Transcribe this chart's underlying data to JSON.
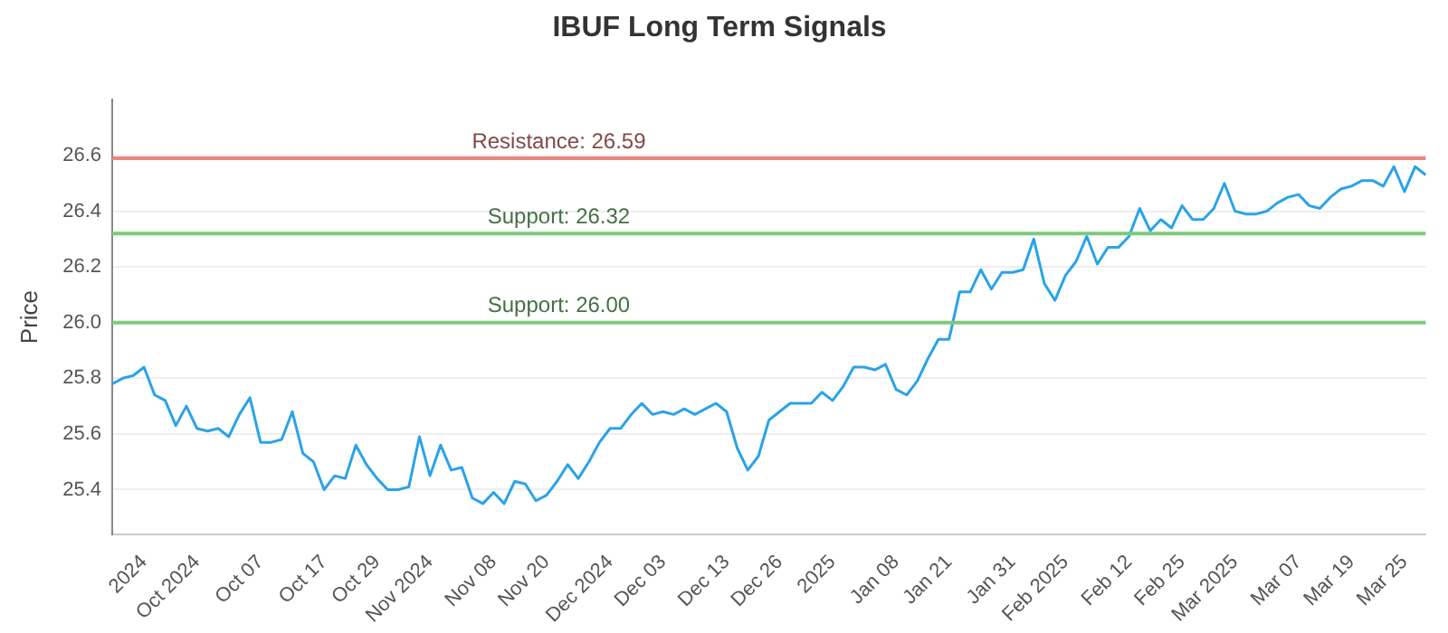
{
  "chart_data": {
    "type": "line",
    "title": "IBUF Long Term Signals",
    "ylabel": "Price",
    "categories": [
      null,
      null,
      null,
      "2024",
      null,
      null,
      null,
      null,
      "Oct 2024",
      null,
      null,
      null,
      null,
      null,
      "Oct 07",
      null,
      null,
      null,
      null,
      null,
      "Oct 17",
      null,
      null,
      null,
      null,
      "Oct 29",
      null,
      null,
      null,
      null,
      "Nov 2024",
      null,
      null,
      null,
      null,
      null,
      "Nov 08",
      null,
      null,
      null,
      null,
      "Nov 20",
      null,
      null,
      null,
      null,
      null,
      "Dec 2024",
      null,
      null,
      null,
      null,
      "Dec 03",
      null,
      null,
      null,
      null,
      null,
      "Dec 13",
      null,
      null,
      null,
      null,
      "Dec 26",
      null,
      null,
      null,
      null,
      "2025",
      null,
      null,
      null,
      null,
      null,
      "Jan 08",
      null,
      null,
      null,
      null,
      "Jan 21",
      null,
      null,
      null,
      null,
      null,
      "Jan 31",
      null,
      null,
      null,
      null,
      "Feb 2025",
      null,
      null,
      null,
      null,
      null,
      "Feb 12",
      null,
      null,
      null,
      null,
      "Feb 25",
      null,
      null,
      null,
      null,
      "Mar 2025",
      null,
      null,
      null,
      null,
      null,
      "Mar 07",
      null,
      null,
      null,
      null,
      "Mar 19",
      null,
      null,
      null,
      null,
      "Mar 25",
      null,
      null
    ],
    "series": [
      {
        "color": "#2aa3e8",
        "values": [
          25.78,
          25.8,
          25.81,
          25.84,
          25.74,
          25.72,
          25.63,
          25.7,
          25.62,
          25.61,
          25.62,
          25.59,
          25.67,
          25.73,
          25.57,
          25.57,
          25.58,
          25.68,
          25.53,
          25.5,
          25.4,
          25.45,
          25.44,
          25.56,
          25.49,
          25.44,
          25.4,
          25.4,
          25.41,
          25.59,
          25.45,
          25.56,
          25.47,
          25.48,
          25.37,
          25.35,
          25.39,
          25.35,
          25.43,
          25.42,
          25.36,
          25.38,
          25.43,
          25.49,
          25.44,
          25.5,
          25.57,
          25.62,
          25.62,
          25.67,
          25.71,
          25.67,
          25.68,
          25.67,
          25.69,
          25.67,
          25.69,
          25.71,
          25.68,
          25.55,
          25.47,
          25.52,
          25.65,
          25.68,
          25.71,
          25.71,
          25.71,
          25.75,
          25.72,
          25.77,
          25.84,
          25.84,
          25.83,
          25.85,
          25.76,
          25.74,
          25.79,
          25.87,
          25.94,
          25.94,
          26.11,
          26.11,
          26.19,
          26.12,
          26.18,
          26.18,
          26.19,
          26.3,
          26.14,
          26.08,
          26.17,
          26.22,
          26.31,
          26.21,
          26.27,
          26.27,
          26.31,
          26.41,
          26.33,
          26.37,
          26.34,
          26.42,
          26.37,
          26.37,
          26.41,
          26.5,
          26.4,
          26.39,
          26.39,
          26.4,
          26.43,
          26.45,
          26.46,
          26.42,
          26.41,
          26.45,
          26.48,
          26.49,
          26.51,
          26.51,
          26.49,
          26.56,
          26.47,
          26.56,
          26.53
        ]
      }
    ],
    "ylim": [
      25.24,
      26.8
    ],
    "yticks": [
      25.4,
      25.6,
      25.8,
      {
        "value": 26,
        "label": "26.0"
      },
      26.2,
      26.4,
      26.6
    ],
    "ref_lines": [
      {
        "axis": "y",
        "value": 26.59,
        "label": "Resistance: 26.59",
        "color": "#e8877f"
      },
      {
        "axis": "y",
        "value": 26.32,
        "label": "Support: 26.32",
        "color": "#7ccb7c"
      },
      {
        "axis": "y",
        "value": 26.0,
        "label": "Support: 26.00",
        "color": "#7ccb7c"
      }
    ],
    "grid": "y",
    "legend": false,
    "marker": "none",
    "line_style": "solid"
  }
}
